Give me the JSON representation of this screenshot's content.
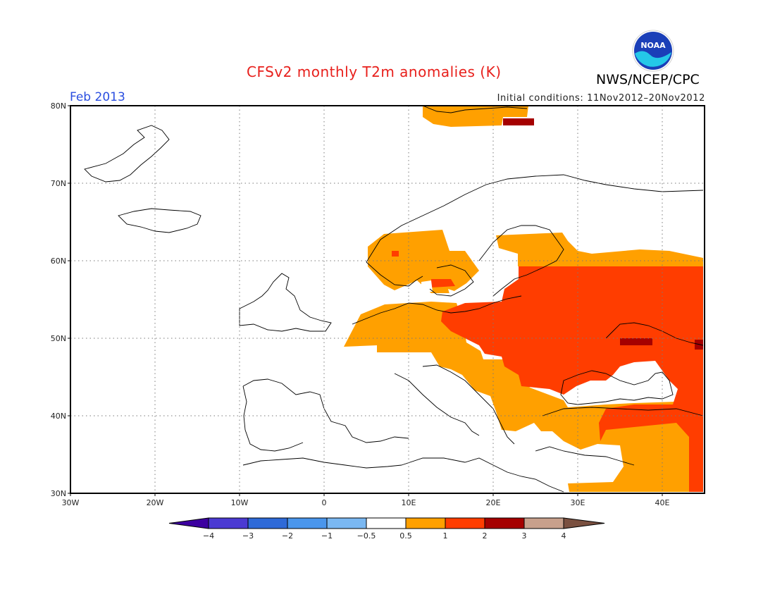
{
  "header": {
    "title": "CFSv2 monthly T2m anomalies (K)",
    "agency": "NWS/NCEP/CPC",
    "month": "Feb 2013",
    "initial_conditions": "Initial conditions: 11Nov2012–20Nov2012",
    "logo_text": "NOAA"
  },
  "map": {
    "lon_range": [
      -30,
      45
    ],
    "lat_range": [
      30,
      80
    ],
    "lat_ticks": [
      {
        "value": 80,
        "label": "80N"
      },
      {
        "value": 70,
        "label": "70N"
      },
      {
        "value": 60,
        "label": "60N"
      },
      {
        "value": 50,
        "label": "50N"
      },
      {
        "value": 40,
        "label": "40N"
      },
      {
        "value": 30,
        "label": "30N"
      }
    ],
    "lon_ticks": [
      {
        "value": -30,
        "label": "30W"
      },
      {
        "value": -20,
        "label": "20W"
      },
      {
        "value": -10,
        "label": "10W"
      },
      {
        "value": 0,
        "label": "0"
      },
      {
        "value": 10,
        "label": "10E"
      },
      {
        "value": 20,
        "label": "20E"
      },
      {
        "value": 30,
        "label": "30E"
      },
      {
        "value": 40,
        "label": "40E"
      }
    ],
    "anomaly_colors": {
      "0.5-1": "#ffa000",
      "1-2": "#ff3d00",
      "2-3": "#a50000",
      "3-4": "#c8a08c"
    }
  },
  "legend": {
    "min_color": "#3c00a0",
    "max_color": "#7a5040",
    "bins": [
      {
        "color": "#4b3ad2"
      },
      {
        "color": "#2e6ad8"
      },
      {
        "color": "#4a96ec"
      },
      {
        "color": "#7ab8f2"
      },
      {
        "color": "#ffffff"
      },
      {
        "color": "#ffa000"
      },
      {
        "color": "#ff3d00"
      },
      {
        "color": "#a50000"
      },
      {
        "color": "#c8a08c"
      }
    ],
    "labels": [
      "−4",
      "−3",
      "−2",
      "−1",
      "−0.5",
      "0.5",
      "1",
      "2",
      "3",
      "4"
    ]
  }
}
